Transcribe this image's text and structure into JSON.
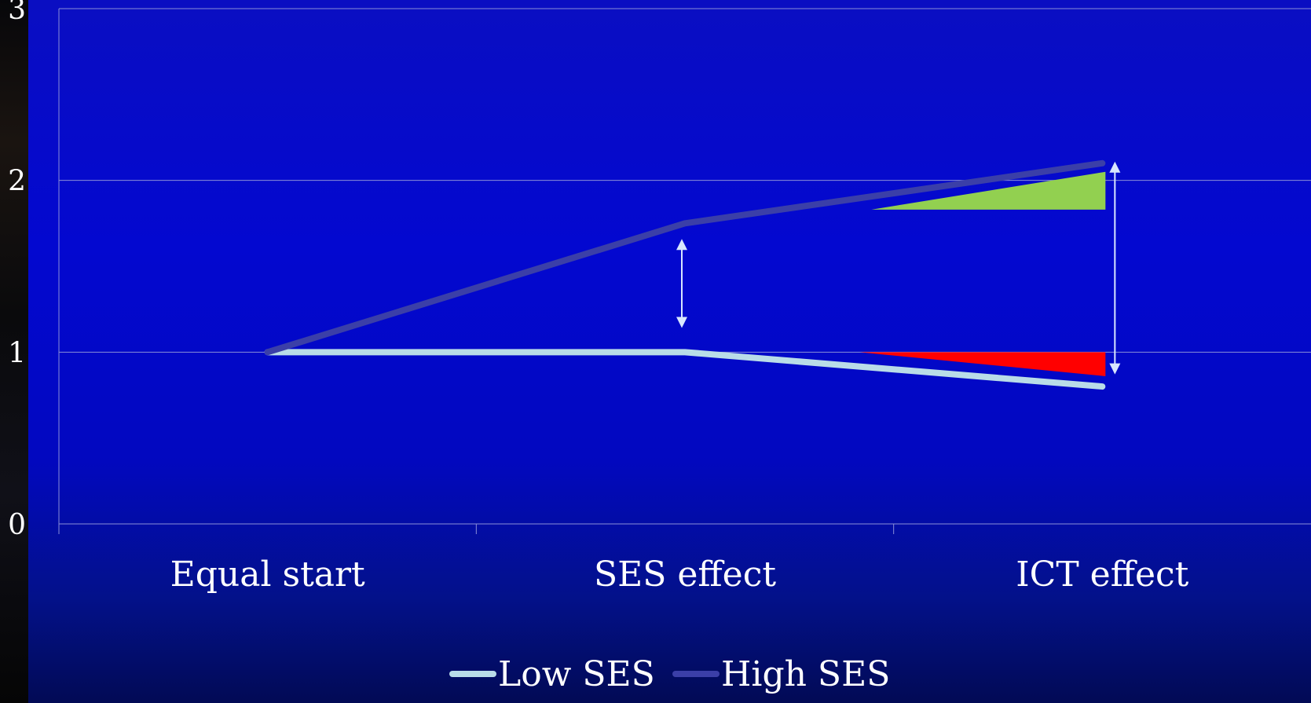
{
  "chart_data": {
    "type": "line",
    "categories": [
      "Equal start",
      "SES effect",
      "ICT effect"
    ],
    "series": [
      {
        "name": "Low SES",
        "values": [
          1,
          1,
          0.8
        ],
        "color": "#b9dce8"
      },
      {
        "name": "High SES",
        "values": [
          1,
          1.75,
          2.1
        ],
        "color": "#3b3fa8"
      }
    ],
    "ylim": [
      0,
      3
    ],
    "yticks": [
      "0",
      "1",
      "2",
      "3"
    ],
    "grid": true,
    "legend": "bottom-center",
    "annotations": {
      "gain_wedge": {
        "category": "ICT effect",
        "from": 1.83,
        "to": 2.05,
        "color": "#92d050"
      },
      "loss_wedge": {
        "category": "ICT effect",
        "from": 1.0,
        "to": 0.86,
        "color": "#ff0000"
      },
      "gap_arrows": [
        {
          "category": "SES effect",
          "from": 1.15,
          "to": 1.65
        },
        {
          "category": "ICT effect",
          "from": 0.88,
          "to": 2.1
        }
      ]
    }
  }
}
